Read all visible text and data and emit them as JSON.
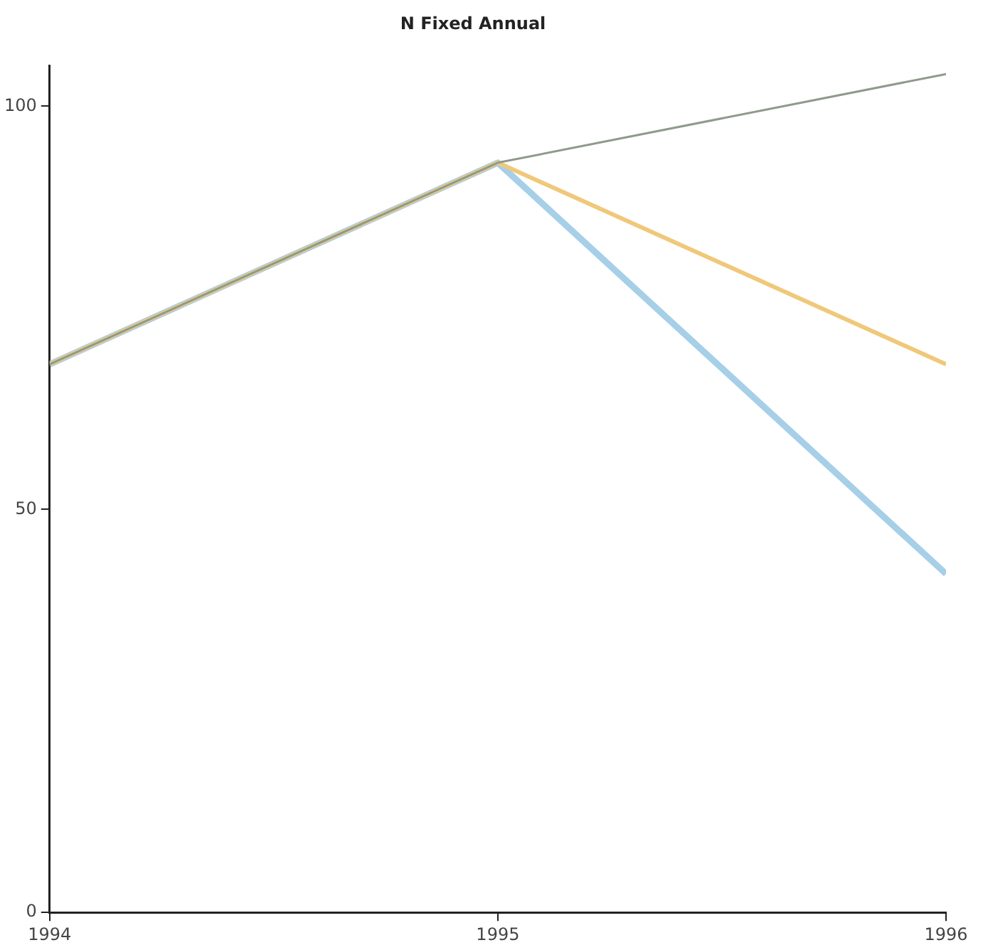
{
  "chart_data": {
    "type": "line",
    "title": "N Fixed Annual",
    "x": [
      1994,
      1995,
      1996
    ],
    "series": [
      {
        "color": "#a6cfe8",
        "values": [
          68,
          93,
          42
        ]
      },
      {
        "color": "#f0c87a",
        "values": [
          68,
          93,
          68
        ]
      },
      {
        "color": "#8f9a8c",
        "values": [
          68,
          93,
          104
        ]
      }
    ],
    "xlim": [
      1994,
      1996
    ],
    "xticks": [
      1994,
      1995,
      1996
    ],
    "ylim": [
      0,
      105
    ],
    "yticks": [
      0,
      50,
      100
    ],
    "grid": false,
    "legend": false,
    "marker": "none",
    "line_style": "solid"
  }
}
